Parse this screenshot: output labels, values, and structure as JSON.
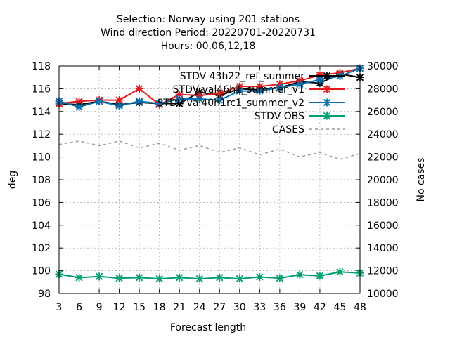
{
  "header": {
    "title_lines": [
      "Selection: Norway using   201 stations",
      "Wind direction   Period: 20220701-20220731",
      "Hours:  00,06,12,18"
    ]
  },
  "chart_data": {
    "type": "line",
    "xlabel": "Forecast length",
    "ylabel": "deg",
    "y2label": "No cases",
    "x": [
      3,
      6,
      9,
      12,
      15,
      18,
      21,
      24,
      27,
      30,
      33,
      36,
      39,
      42,
      45,
      48
    ],
    "xlim": [
      3,
      48
    ],
    "ylim": [
      98,
      118
    ],
    "y2lim": [
      10000,
      30000
    ],
    "yticks": [
      98,
      100,
      102,
      104,
      106,
      108,
      110,
      112,
      114,
      116,
      118
    ],
    "y2ticks": [
      10000,
      12000,
      14000,
      16000,
      18000,
      20000,
      22000,
      24000,
      26000,
      28000,
      30000
    ],
    "grid": true,
    "legend_position": "top-right",
    "series": [
      {
        "name": "STDV 43h22_ref_summer",
        "legend_text": "STDV 43h22_ref_summer",
        "color": "#000000",
        "marker": "cross",
        "dash": "solid",
        "axis": "y",
        "values": [
          114.7,
          114.6,
          114.9,
          114.6,
          114.8,
          114.7,
          114.7,
          115.7,
          115.4,
          116.0,
          115.9,
          116.1,
          116.6,
          116.5,
          117.3,
          117.0
        ]
      },
      {
        "name": "STDV val46h1_summer_v1",
        "legend_text": "STDV val46h1_summer_v1",
        "color": "#e41a1c",
        "marker": "cross",
        "dash": "solid",
        "axis": "y",
        "values": [
          114.7,
          114.9,
          115.0,
          115.0,
          116.0,
          114.6,
          115.5,
          115.4,
          115.6,
          116.2,
          116.2,
          116.4,
          116.7,
          117.2,
          117.4,
          117.8
        ]
      },
      {
        "name": "STDV val40h1rc1_summer_v2",
        "legend_text": "STDV val40h1rc1_summer_v2",
        "color": "#0072b2",
        "marker": "cross",
        "dash": "solid",
        "axis": "y",
        "values": [
          114.9,
          114.4,
          114.9,
          114.5,
          114.9,
          114.7,
          115.1,
          115.1,
          115.0,
          115.8,
          115.8,
          116.1,
          116.4,
          116.8,
          117.1,
          117.8
        ]
      },
      {
        "name": "STDV OBS",
        "legend_text": "STDV OBS",
        "color": "#009e73",
        "marker": "cross",
        "dash": "solid",
        "axis": "y",
        "values": [
          99.7,
          99.4,
          99.5,
          99.35,
          99.4,
          99.3,
          99.4,
          99.3,
          99.4,
          99.3,
          99.45,
          99.35,
          99.65,
          99.55,
          99.9,
          99.8
        ]
      },
      {
        "name": "CASES",
        "legend_text": "CASES",
        "color": "#999999",
        "marker": "none",
        "dash": "dashed",
        "axis": "y2",
        "values": [
          23100,
          23400,
          23000,
          23400,
          22800,
          23200,
          22600,
          23000,
          22400,
          22800,
          22200,
          22700,
          22000,
          22400,
          21800,
          22300
        ]
      }
    ]
  }
}
